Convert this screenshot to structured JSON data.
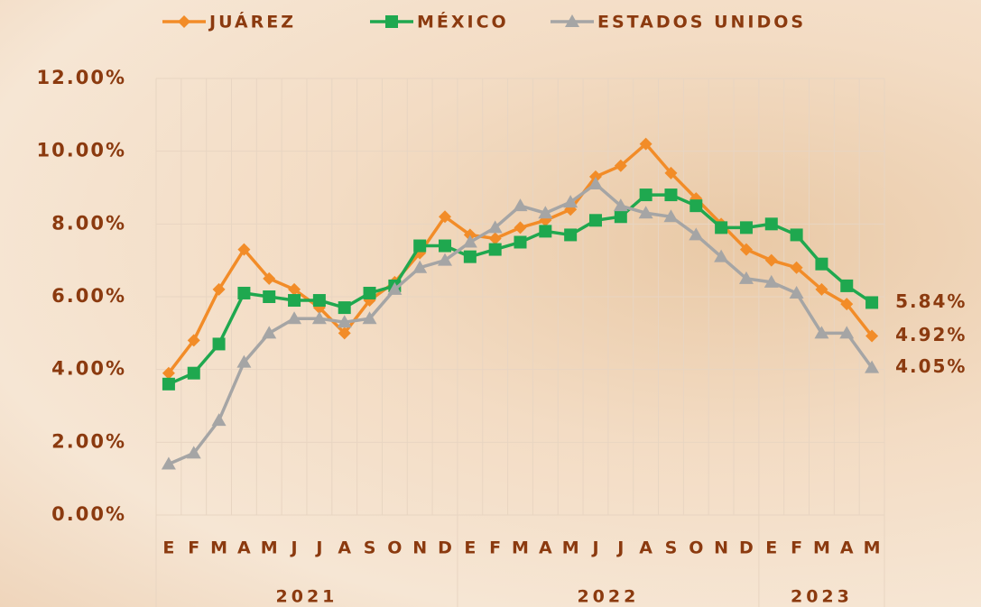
{
  "chart_data": {
    "type": "line",
    "categories": [
      "E",
      "F",
      "M",
      "A",
      "M",
      "J",
      "J",
      "A",
      "S",
      "O",
      "N",
      "D",
      "E",
      "F",
      "M",
      "A",
      "M",
      "J",
      "J",
      "A",
      "S",
      "O",
      "N",
      "D",
      "E",
      "F",
      "M",
      "A",
      "M"
    ],
    "year_groups": [
      {
        "label": "2021",
        "span": 12
      },
      {
        "label": "2022",
        "span": 12
      },
      {
        "label": "2023",
        "span": 5
      }
    ],
    "series": [
      {
        "name": "JUÁREZ",
        "color": "#f28c28",
        "marker": "diamond",
        "values": [
          3.9,
          4.8,
          6.2,
          7.3,
          6.5,
          6.2,
          5.7,
          5.0,
          5.9,
          6.4,
          7.2,
          8.2,
          7.7,
          7.6,
          7.9,
          8.1,
          8.4,
          9.3,
          9.6,
          10.2,
          9.4,
          8.7,
          8.0,
          7.3,
          7.0,
          6.8,
          6.2,
          5.8,
          4.92
        ],
        "value_labels": [
          null,
          null,
          null,
          null,
          null,
          null,
          null,
          null,
          null,
          null,
          null,
          null,
          null,
          null,
          null,
          null,
          null,
          null,
          null,
          null,
          null,
          null,
          null,
          null,
          null,
          null,
          null,
          null,
          "4.92%"
        ]
      },
      {
        "name": "MÉXICO",
        "color": "#1fa84f",
        "marker": "square",
        "values": [
          3.6,
          3.9,
          4.7,
          6.1,
          6.0,
          5.9,
          5.9,
          5.7,
          6.1,
          6.3,
          7.4,
          7.4,
          7.1,
          7.3,
          7.5,
          7.8,
          7.7,
          8.1,
          8.2,
          8.8,
          8.8,
          8.5,
          7.9,
          7.9,
          8.0,
          7.7,
          6.9,
          6.3,
          5.84
        ],
        "value_labels": [
          null,
          null,
          null,
          null,
          null,
          null,
          null,
          null,
          null,
          null,
          null,
          null,
          null,
          null,
          null,
          null,
          null,
          null,
          null,
          null,
          null,
          null,
          null,
          null,
          null,
          null,
          null,
          null,
          "5.84%"
        ]
      },
      {
        "name": "ESTADOS UNIDOS",
        "color": "#a5a5a5",
        "marker": "triangle",
        "values": [
          1.4,
          1.7,
          2.6,
          4.2,
          5.0,
          5.4,
          5.4,
          5.3,
          5.4,
          6.2,
          6.8,
          7.0,
          7.5,
          7.9,
          8.5,
          8.3,
          8.6,
          9.1,
          8.5,
          8.3,
          8.2,
          7.7,
          7.1,
          6.5,
          6.4,
          6.1,
          5.0,
          5.0,
          4.05
        ],
        "value_labels": [
          null,
          null,
          null,
          null,
          null,
          null,
          null,
          null,
          null,
          null,
          null,
          null,
          null,
          null,
          null,
          null,
          null,
          null,
          null,
          null,
          null,
          null,
          null,
          null,
          null,
          null,
          null,
          null,
          "4.05%"
        ]
      }
    ],
    "ylim": [
      0,
      12
    ],
    "yticks": [
      {
        "value": 0,
        "label": "0.00%"
      },
      {
        "value": 2,
        "label": "2.00%"
      },
      {
        "value": 4,
        "label": "4.00%"
      },
      {
        "value": 6,
        "label": "6.00%"
      },
      {
        "value": 8,
        "label": "8.00%"
      },
      {
        "value": 10,
        "label": "10.00%"
      },
      {
        "value": 12,
        "label": "12.00%"
      }
    ],
    "grid": true,
    "legend": "top"
  }
}
